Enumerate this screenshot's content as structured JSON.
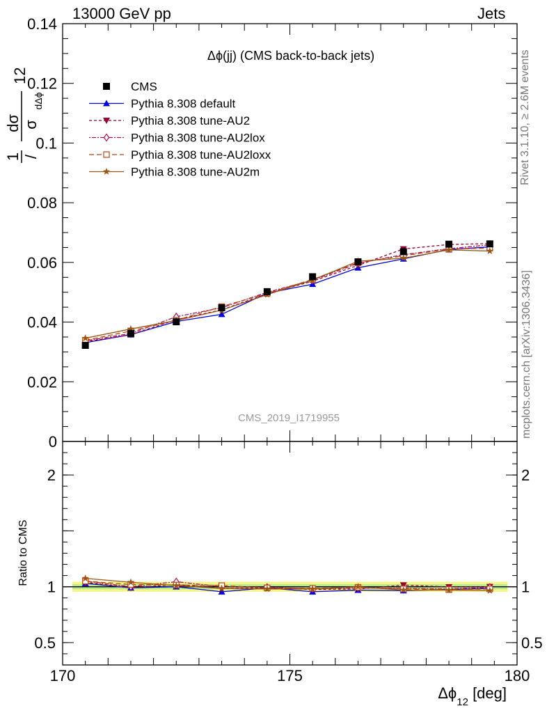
{
  "header": {
    "left": "13000 GeV pp",
    "right": "Jets"
  },
  "side": {
    "rivet": "Rivet 3.1.10, ≥ 2.6M events",
    "mcplots": "mcplots.cern.ch [arXiv:1306.3436]"
  },
  "chart_data": {
    "type": "line",
    "title": "Δϕ(jj) (CMS back-to-back jets)",
    "watermark": "CMS_2019_I1719955",
    "xlabel": "Δϕ",
    "xlabel_sub": "12",
    "xlabel_unit": " [deg]",
    "ylabel": "1 dσ / σ dΔϕ 12 [deg-1]",
    "ratio_ylabel": "Ratio to CMS",
    "xlim": [
      170,
      180
    ],
    "ylim": [
      0,
      0.14
    ],
    "ratio_ylim": [
      0.3,
      2.3
    ],
    "xticks": [
      "170",
      "175",
      "180"
    ],
    "yticks": [
      "0",
      "0.02",
      "0.04",
      "0.06",
      "0.08",
      "0.1",
      "0.12",
      "0.14"
    ],
    "ratio_yticks": [
      "0.5",
      "1",
      "2"
    ],
    "x": [
      170.5,
      171.5,
      172.5,
      173.5,
      174.5,
      175.5,
      176.5,
      177.5,
      178.5,
      179.4
    ],
    "data": {
      "name": "CMS",
      "values": [
        0.0322,
        0.0362,
        0.0401,
        0.0448,
        0.0502,
        0.0552,
        0.0602,
        0.0636,
        0.0661,
        0.0662
      ]
    },
    "series": [
      {
        "name": "Pythia 8.308 default",
        "color": "#0000dd",
        "marker": "triangle-up",
        "dash": "",
        "values": [
          0.0331,
          0.0358,
          0.0402,
          0.0426,
          0.0497,
          0.0527,
          0.0582,
          0.0612,
          0.0643,
          0.0652
        ],
        "ratio": [
          1.03,
          0.99,
          1.0,
          0.955,
          0.99,
          0.955,
          0.97,
          0.965,
          0.975,
          0.985
        ]
      },
      {
        "name": "Pythia 8.308 tune-AU2",
        "color": "#990033",
        "marker": "triangle-down",
        "dash": "4,3",
        "values": [
          0.0334,
          0.0358,
          0.0408,
          0.0441,
          0.0495,
          0.0537,
          0.059,
          0.0645,
          0.066,
          0.0663
        ],
        "ratio": [
          1.04,
          0.99,
          1.02,
          0.985,
          0.99,
          0.975,
          0.98,
          1.015,
          0.998,
          1.0
        ]
      },
      {
        "name": "Pythia 8.308 tune-AU2lox",
        "color": "#aa1155",
        "marker": "diamond",
        "dash": "2,2,6,2",
        "values": [
          0.0337,
          0.0362,
          0.0418,
          0.0448,
          0.05,
          0.054,
          0.0597,
          0.0626,
          0.0646,
          0.0659
        ],
        "ratio": [
          1.05,
          1.0,
          1.045,
          1.0,
          0.995,
          0.98,
          0.99,
          0.985,
          0.98,
          0.995
        ]
      },
      {
        "name": "Pythia 8.308 tune-AU2loxx",
        "color": "#bb4411",
        "marker": "square",
        "dash": "7,4",
        "values": [
          0.0339,
          0.037,
          0.0406,
          0.0452,
          0.0496,
          0.0543,
          0.0599,
          0.0622,
          0.0645,
          0.0648
        ],
        "ratio": [
          1.05,
          1.02,
          1.015,
          1.01,
          0.99,
          0.985,
          0.995,
          0.98,
          0.975,
          0.98
        ]
      },
      {
        "name": "Pythia 8.308 tune-AU2m",
        "color": "#995511",
        "marker": "star",
        "dash": "",
        "values": [
          0.0346,
          0.0377,
          0.0405,
          0.044,
          0.0492,
          0.0541,
          0.0604,
          0.0614,
          0.0642,
          0.0638
        ],
        "ratio": [
          1.075,
          1.04,
          1.01,
          0.985,
          0.98,
          0.98,
          1.0,
          0.97,
          0.97,
          0.965
        ]
      }
    ],
    "legend": "top-left",
    "grid": false
  }
}
